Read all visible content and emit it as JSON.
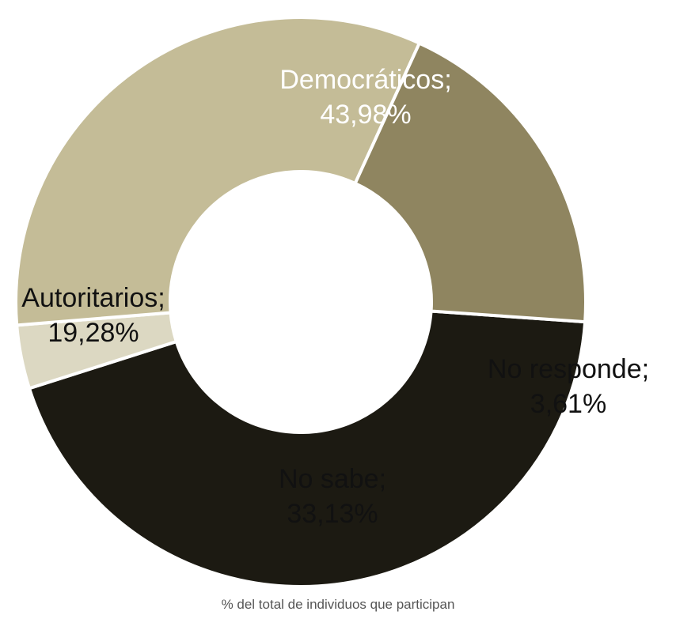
{
  "chart_data": {
    "type": "pie",
    "style": "donut",
    "start_angle_deg": 94,
    "direction": "clockwise",
    "slices": [
      {
        "label": "Democráticos;",
        "value": 43.98,
        "value_text": "43,98%",
        "color": "#1c1a12",
        "text_color": "#ffffff"
      },
      {
        "label": "No responde;",
        "value": 3.61,
        "value_text": "3,61%",
        "color": "#dcd8c2",
        "text_color": "#111111"
      },
      {
        "label": "No sabe;",
        "value": 33.13,
        "value_text": "33,13%",
        "color": "#c4bc97",
        "text_color": "#111111"
      },
      {
        "label": "Autoritarios;",
        "value": 19.28,
        "value_text": "19,28%",
        "color": "#8f8560",
        "text_color": "#111111"
      }
    ],
    "footnote": "% del total de individuos que participan",
    "legend": "none"
  }
}
